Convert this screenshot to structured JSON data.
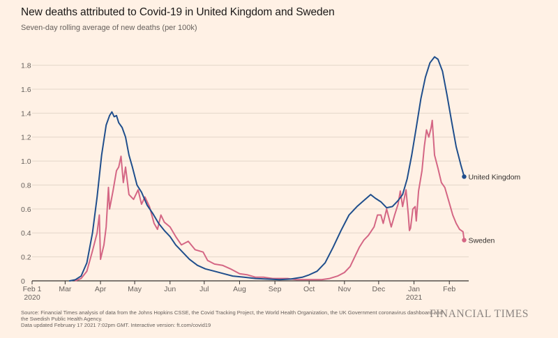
{
  "header": {
    "title": "New deaths attributed to Covid-19 in United Kingdom and Sweden",
    "subtitle": "Seven-day rolling average of new deaths (per 100k)"
  },
  "footer": {
    "source_line1": "Source: Financial Times analysis of data from the Johns Hopkins CSSE, the Covid Tracking Project, the World Health Organization, the UK Government coronavirus dashboard and the Swedish Public Health Agency.",
    "source_line2": "Data updated February 17 2021 7:02pm GMT. Interactive version: ft.com/covid19",
    "brand": "FINANCIAL TIMES"
  },
  "chart_data": {
    "type": "line",
    "ylim": [
      0,
      1.85
    ],
    "yticks": [
      0,
      0.2,
      0.4,
      0.6,
      0.8,
      1.0,
      1.2,
      1.4,
      1.6,
      1.8
    ],
    "ytick_labels": [
      "0",
      "0.2",
      "0.4",
      "0.6",
      "0.8",
      "1.0",
      "1.2",
      "1.4",
      "1.6",
      "1.8"
    ],
    "xlim": [
      "2020-02-01",
      "2021-02-18"
    ],
    "xticks": [
      {
        "date": "2020-02-01",
        "label": "Feb 1",
        "sublabel": "2020"
      },
      {
        "date": "2020-03-01",
        "label": "Mar",
        "sublabel": ""
      },
      {
        "date": "2020-04-01",
        "label": "Apr",
        "sublabel": ""
      },
      {
        "date": "2020-05-01",
        "label": "May",
        "sublabel": ""
      },
      {
        "date": "2020-06-01",
        "label": "Jun",
        "sublabel": ""
      },
      {
        "date": "2020-07-01",
        "label": "Jul",
        "sublabel": ""
      },
      {
        "date": "2020-08-01",
        "label": "Aug",
        "sublabel": ""
      },
      {
        "date": "2020-09-01",
        "label": "Sep",
        "sublabel": ""
      },
      {
        "date": "2020-10-01",
        "label": "Oct",
        "sublabel": ""
      },
      {
        "date": "2020-11-01",
        "label": "Nov",
        "sublabel": ""
      },
      {
        "date": "2020-12-01",
        "label": "Dec",
        "sublabel": ""
      },
      {
        "date": "2021-01-01",
        "label": "Jan",
        "sublabel": "2021"
      },
      {
        "date": "2021-02-01",
        "label": "Feb",
        "sublabel": ""
      }
    ],
    "grid": true,
    "series": [
      {
        "name": "United Kingdom",
        "color": "#1f4e8c",
        "points": [
          [
            "2020-03-05",
            0.0
          ],
          [
            "2020-03-10",
            0.01
          ],
          [
            "2020-03-15",
            0.04
          ],
          [
            "2020-03-20",
            0.15
          ],
          [
            "2020-03-25",
            0.4
          ],
          [
            "2020-03-29",
            0.7
          ],
          [
            "2020-04-02",
            1.05
          ],
          [
            "2020-04-06",
            1.3
          ],
          [
            "2020-04-09",
            1.38
          ],
          [
            "2020-04-11",
            1.41
          ],
          [
            "2020-04-13",
            1.37
          ],
          [
            "2020-04-15",
            1.38
          ],
          [
            "2020-04-17",
            1.32
          ],
          [
            "2020-04-20",
            1.28
          ],
          [
            "2020-04-23",
            1.2
          ],
          [
            "2020-04-26",
            1.05
          ],
          [
            "2020-04-29",
            0.95
          ],
          [
            "2020-05-03",
            0.8
          ],
          [
            "2020-05-07",
            0.74
          ],
          [
            "2020-05-12",
            0.63
          ],
          [
            "2020-05-17",
            0.56
          ],
          [
            "2020-05-22",
            0.48
          ],
          [
            "2020-05-27",
            0.42
          ],
          [
            "2020-06-01",
            0.37
          ],
          [
            "2020-06-06",
            0.3
          ],
          [
            "2020-06-12",
            0.24
          ],
          [
            "2020-06-18",
            0.18
          ],
          [
            "2020-06-25",
            0.13
          ],
          [
            "2020-07-02",
            0.1
          ],
          [
            "2020-07-10",
            0.08
          ],
          [
            "2020-07-18",
            0.06
          ],
          [
            "2020-07-26",
            0.04
          ],
          [
            "2020-08-05",
            0.03
          ],
          [
            "2020-08-15",
            0.02
          ],
          [
            "2020-08-25",
            0.015
          ],
          [
            "2020-09-05",
            0.01
          ],
          [
            "2020-09-15",
            0.015
          ],
          [
            "2020-09-25",
            0.03
          ],
          [
            "2020-10-01",
            0.05
          ],
          [
            "2020-10-08",
            0.08
          ],
          [
            "2020-10-15",
            0.15
          ],
          [
            "2020-10-22",
            0.28
          ],
          [
            "2020-10-29",
            0.42
          ],
          [
            "2020-11-05",
            0.55
          ],
          [
            "2020-11-12",
            0.62
          ],
          [
            "2020-11-18",
            0.67
          ],
          [
            "2020-11-24",
            0.72
          ],
          [
            "2020-11-28",
            0.69
          ],
          [
            "2020-12-03",
            0.66
          ],
          [
            "2020-12-08",
            0.61
          ],
          [
            "2020-12-13",
            0.62
          ],
          [
            "2020-12-18",
            0.67
          ],
          [
            "2020-12-22",
            0.72
          ],
          [
            "2020-12-26",
            0.85
          ],
          [
            "2020-12-30",
            1.05
          ],
          [
            "2021-01-03",
            1.28
          ],
          [
            "2021-01-07",
            1.52
          ],
          [
            "2021-01-11",
            1.7
          ],
          [
            "2021-01-15",
            1.82
          ],
          [
            "2021-01-19",
            1.87
          ],
          [
            "2021-01-22",
            1.85
          ],
          [
            "2021-01-26",
            1.75
          ],
          [
            "2021-01-30",
            1.55
          ],
          [
            "2021-02-03",
            1.33
          ],
          [
            "2021-02-07",
            1.12
          ],
          [
            "2021-02-11",
            0.97
          ],
          [
            "2021-02-14",
            0.87
          ]
        ]
      },
      {
        "name": "Sweden",
        "color": "#d46684",
        "points": [
          [
            "2020-03-10",
            0.0
          ],
          [
            "2020-03-15",
            0.02
          ],
          [
            "2020-03-20",
            0.08
          ],
          [
            "2020-03-25",
            0.25
          ],
          [
            "2020-03-29",
            0.4
          ],
          [
            "2020-03-31",
            0.55
          ],
          [
            "2020-04-01",
            0.18
          ],
          [
            "2020-04-04",
            0.3
          ],
          [
            "2020-04-06",
            0.45
          ],
          [
            "2020-04-08",
            0.78
          ],
          [
            "2020-04-09",
            0.6
          ],
          [
            "2020-04-12",
            0.75
          ],
          [
            "2020-04-15",
            0.92
          ],
          [
            "2020-04-17",
            0.95
          ],
          [
            "2020-04-19",
            1.04
          ],
          [
            "2020-04-21",
            0.82
          ],
          [
            "2020-04-23",
            0.95
          ],
          [
            "2020-04-26",
            0.72
          ],
          [
            "2020-04-30",
            0.68
          ],
          [
            "2020-05-04",
            0.76
          ],
          [
            "2020-05-07",
            0.64
          ],
          [
            "2020-05-10",
            0.7
          ],
          [
            "2020-05-14",
            0.62
          ],
          [
            "2020-05-18",
            0.48
          ],
          [
            "2020-05-21",
            0.43
          ],
          [
            "2020-05-24",
            0.55
          ],
          [
            "2020-05-27",
            0.49
          ],
          [
            "2020-06-01",
            0.45
          ],
          [
            "2020-06-06",
            0.37
          ],
          [
            "2020-06-11",
            0.3
          ],
          [
            "2020-06-17",
            0.33
          ],
          [
            "2020-06-23",
            0.26
          ],
          [
            "2020-06-30",
            0.24
          ],
          [
            "2020-07-04",
            0.17
          ],
          [
            "2020-07-10",
            0.14
          ],
          [
            "2020-07-17",
            0.13
          ],
          [
            "2020-07-24",
            0.1
          ],
          [
            "2020-08-01",
            0.06
          ],
          [
            "2020-08-08",
            0.05
          ],
          [
            "2020-08-15",
            0.03
          ],
          [
            "2020-08-22",
            0.03
          ],
          [
            "2020-08-30",
            0.02
          ],
          [
            "2020-09-05",
            0.02
          ],
          [
            "2020-09-12",
            0.02
          ],
          [
            "2020-09-20",
            0.01
          ],
          [
            "2020-09-28",
            0.01
          ],
          [
            "2020-10-05",
            0.01
          ],
          [
            "2020-10-12",
            0.01
          ],
          [
            "2020-10-19",
            0.02
          ],
          [
            "2020-10-26",
            0.04
          ],
          [
            "2020-11-01",
            0.07
          ],
          [
            "2020-11-06",
            0.12
          ],
          [
            "2020-11-10",
            0.2
          ],
          [
            "2020-11-14",
            0.28
          ],
          [
            "2020-11-18",
            0.34
          ],
          [
            "2020-11-22",
            0.38
          ],
          [
            "2020-11-27",
            0.45
          ],
          [
            "2020-11-30",
            0.55
          ],
          [
            "2020-12-03",
            0.55
          ],
          [
            "2020-12-05",
            0.48
          ],
          [
            "2020-12-08",
            0.6
          ],
          [
            "2020-12-12",
            0.45
          ],
          [
            "2020-12-15",
            0.55
          ],
          [
            "2020-12-18",
            0.64
          ],
          [
            "2020-12-20",
            0.75
          ],
          [
            "2020-12-22",
            0.62
          ],
          [
            "2020-12-25",
            0.76
          ],
          [
            "2020-12-27",
            0.55
          ],
          [
            "2020-12-28",
            0.42
          ],
          [
            "2020-12-29",
            0.44
          ],
          [
            "2020-12-31",
            0.6
          ],
          [
            "2021-01-02",
            0.62
          ],
          [
            "2021-01-03",
            0.5
          ],
          [
            "2021-01-05",
            0.75
          ],
          [
            "2021-01-08",
            0.92
          ],
          [
            "2021-01-10",
            1.12
          ],
          [
            "2021-01-12",
            1.26
          ],
          [
            "2021-01-14",
            1.2
          ],
          [
            "2021-01-16",
            1.28
          ],
          [
            "2021-01-17",
            1.34
          ],
          [
            "2021-01-19",
            1.05
          ],
          [
            "2021-01-22",
            0.94
          ],
          [
            "2021-01-25",
            0.82
          ],
          [
            "2021-01-28",
            0.78
          ],
          [
            "2021-02-01",
            0.65
          ],
          [
            "2021-02-04",
            0.55
          ],
          [
            "2021-02-07",
            0.48
          ],
          [
            "2021-02-10",
            0.43
          ],
          [
            "2021-02-13",
            0.41
          ],
          [
            "2021-02-14",
            0.34
          ]
        ]
      }
    ]
  }
}
